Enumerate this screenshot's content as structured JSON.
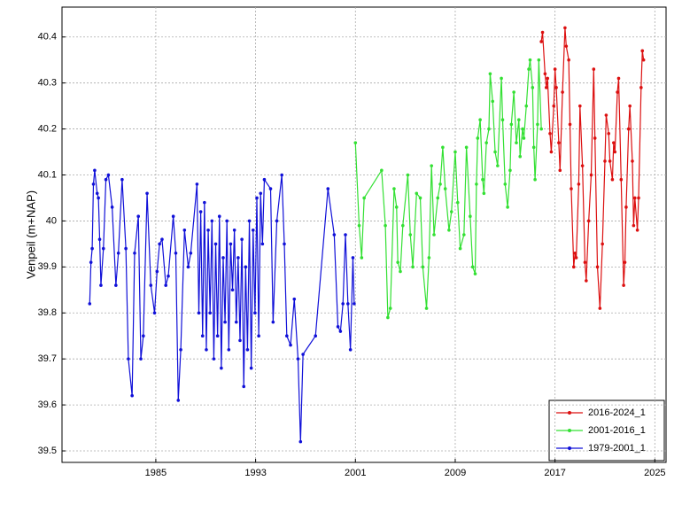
{
  "chart_data": {
    "type": "line",
    "y_label": "Venpeil (m+NAP)",
    "xlim": [
      1977.48,
      2025.9
    ],
    "xticks": [
      1985,
      1993,
      2001,
      2009,
      2017,
      2025
    ],
    "ylim": [
      39.475,
      40.465
    ],
    "yticks": [
      39.5,
      39.6,
      39.7,
      39.8,
      39.9,
      40,
      40.1,
      40.2,
      40.3,
      40.4
    ],
    "grid": true,
    "legend": "lower right",
    "series": [
      {
        "name": "1979-2001_1",
        "color": "#1010d8",
        "x": [
          1979.7,
          1979.8,
          1979.9,
          1980.0,
          1980.1,
          1980.3,
          1980.4,
          1980.5,
          1980.6,
          1980.8,
          1981.0,
          1981.2,
          1981.5,
          1981.8,
          1982.0,
          1982.3,
          1982.6,
          1982.8,
          1983.1,
          1983.3,
          1983.6,
          1983.8,
          1984.0,
          1984.3,
          1984.6,
          1984.9,
          1985.1,
          1985.3,
          1985.5,
          1985.8,
          1986.0,
          1986.4,
          1986.6,
          1986.8,
          1987.0,
          1987.3,
          1987.6,
          1987.8,
          1988.3,
          1988.45,
          1988.6,
          1988.75,
          1988.9,
          1989.05,
          1989.2,
          1989.35,
          1989.5,
          1989.65,
          1989.8,
          1989.95,
          1990.1,
          1990.25,
          1990.4,
          1990.55,
          1990.7,
          1990.85,
          1991.0,
          1991.15,
          1991.3,
          1991.45,
          1991.6,
          1991.75,
          1991.9,
          1992.05,
          1992.2,
          1992.35,
          1992.5,
          1992.65,
          1992.8,
          1992.95,
          1993.1,
          1993.25,
          1993.4,
          1993.55,
          1993.7,
          1994.2,
          1994.4,
          1994.7,
          1995.1,
          1995.3,
          1995.5,
          1995.8,
          1996.1,
          1996.4,
          1996.6,
          1996.8,
          1997.8,
          1998.8,
          1999.3,
          1999.6,
          1999.8,
          2000.0,
          2000.2,
          2000.4,
          2000.6,
          2000.8,
          2000.9
        ],
        "values": [
          39.82,
          39.91,
          39.94,
          40.08,
          40.11,
          40.06,
          40.05,
          39.96,
          39.86,
          39.94,
          40.09,
          40.1,
          40.03,
          39.86,
          39.93,
          40.09,
          39.94,
          39.7,
          39.62,
          39.93,
          40.01,
          39.7,
          39.75,
          40.06,
          39.86,
          39.8,
          39.89,
          39.95,
          39.96,
          39.86,
          39.88,
          40.01,
          39.93,
          39.61,
          39.72,
          39.98,
          39.9,
          39.93,
          40.08,
          39.8,
          40.02,
          39.75,
          40.04,
          39.72,
          39.98,
          39.8,
          40.0,
          39.7,
          39.95,
          39.75,
          40.01,
          39.68,
          39.92,
          39.78,
          40.0,
          39.72,
          39.95,
          39.85,
          39.98,
          39.78,
          39.92,
          39.74,
          39.96,
          39.64,
          39.9,
          39.72,
          40.0,
          39.68,
          39.98,
          39.8,
          40.05,
          39.75,
          40.06,
          39.95,
          40.09,
          40.07,
          39.78,
          40.0,
          40.1,
          39.95,
          39.75,
          39.73,
          39.83,
          39.7,
          39.52,
          39.71,
          39.75,
          40.07,
          39.97,
          39.77,
          39.76,
          39.82,
          39.97,
          39.82,
          39.72,
          39.92,
          39.82
        ]
      },
      {
        "name": "2001-2016_1",
        "color": "#33e033",
        "x": [
          2001.0,
          2001.3,
          2001.5,
          2001.7,
          2003.1,
          2003.4,
          2003.6,
          2003.8,
          2004.1,
          2004.3,
          2004.4,
          2004.6,
          2004.8,
          2005.2,
          2005.4,
          2005.6,
          2005.9,
          2006.2,
          2006.4,
          2006.7,
          2006.9,
          2007.1,
          2007.3,
          2007.6,
          2007.8,
          2008.0,
          2008.2,
          2008.5,
          2008.7,
          2009.0,
          2009.2,
          2009.4,
          2009.7,
          2009.9,
          2010.2,
          2010.4,
          2010.6,
          2010.7,
          2010.8,
          2011.0,
          2011.2,
          2011.3,
          2011.5,
          2011.7,
          2011.8,
          2012.0,
          2012.2,
          2012.4,
          2012.7,
          2012.8,
          2013.0,
          2013.2,
          2013.4,
          2013.5,
          2013.7,
          2013.9,
          2014.1,
          2014.2,
          2014.4,
          2014.5,
          2014.7,
          2014.9,
          2015.0,
          2015.2,
          2015.3,
          2015.4,
          2015.6,
          2015.7,
          2015.9
        ],
        "values": [
          40.17,
          39.99,
          39.92,
          40.05,
          40.11,
          39.99,
          39.79,
          39.81,
          40.07,
          40.03,
          39.91,
          39.89,
          39.99,
          40.1,
          39.97,
          39.9,
          40.06,
          40.05,
          39.9,
          39.81,
          39.92,
          40.12,
          39.97,
          40.05,
          40.08,
          40.16,
          40.07,
          39.98,
          40.02,
          40.15,
          40.04,
          39.94,
          39.97,
          40.16,
          40.01,
          39.9,
          39.885,
          40.08,
          40.18,
          40.22,
          40.09,
          40.06,
          40.17,
          40.2,
          40.32,
          40.26,
          40.15,
          40.12,
          40.31,
          40.22,
          40.08,
          40.03,
          40.11,
          40.21,
          40.28,
          40.17,
          40.22,
          40.14,
          40.2,
          40.18,
          40.25,
          40.33,
          40.35,
          40.29,
          40.16,
          40.09,
          40.21,
          40.35,
          40.2
        ]
      },
      {
        "name": "2016-2024_1",
        "color": "#dc1010",
        "x": [
          2015.9,
          2016.0,
          2016.2,
          2016.3,
          2016.4,
          2016.6,
          2016.7,
          2016.9,
          2017.0,
          2017.1,
          2017.3,
          2017.4,
          2017.6,
          2017.8,
          2017.9,
          2018.1,
          2018.2,
          2018.3,
          2018.5,
          2018.6,
          2018.7,
          2018.9,
          2019.0,
          2019.2,
          2019.4,
          2019.5,
          2019.7,
          2019.9,
          2020.1,
          2020.2,
          2020.4,
          2020.6,
          2020.8,
          2021.0,
          2021.1,
          2021.3,
          2021.4,
          2021.6,
          2021.7,
          2021.8,
          2022.0,
          2022.1,
          2022.3,
          2022.5,
          2022.6,
          2022.7,
          2022.9,
          2023.0,
          2023.2,
          2023.3,
          2023.4,
          2023.6,
          2023.7,
          2023.9,
          2024.0,
          2024.1
        ],
        "values": [
          40.39,
          40.41,
          40.32,
          40.29,
          40.31,
          40.19,
          40.15,
          40.25,
          40.33,
          40.29,
          40.17,
          40.11,
          40.28,
          40.42,
          40.38,
          40.35,
          40.21,
          40.07,
          39.9,
          39.93,
          39.92,
          40.08,
          40.25,
          40.12,
          39.91,
          39.87,
          40.0,
          40.1,
          40.33,
          40.18,
          39.9,
          39.81,
          39.95,
          40.13,
          40.23,
          40.19,
          40.13,
          40.09,
          40.17,
          40.15,
          40.28,
          40.31,
          40.09,
          39.86,
          39.91,
          40.03,
          40.2,
          40.25,
          40.13,
          39.99,
          40.05,
          39.98,
          40.05,
          40.29,
          40.37,
          40.35
        ]
      }
    ]
  }
}
